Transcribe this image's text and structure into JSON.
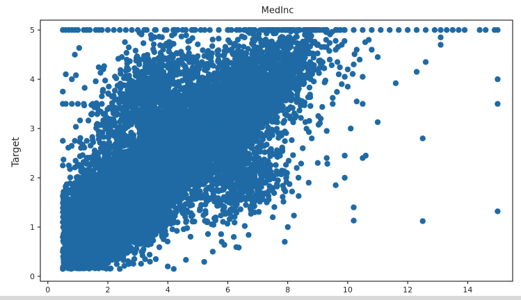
{
  "chart_data": {
    "type": "scatter",
    "title": "MedInc",
    "xlabel": "",
    "ylabel": "Target",
    "xlim": [
      -0.25,
      15.5
    ],
    "ylim": [
      -0.1,
      5.2
    ],
    "xticks": [
      0,
      2,
      4,
      6,
      8,
      10,
      12,
      14
    ],
    "yticks": [
      0,
      1,
      2,
      3,
      4,
      5
    ],
    "grid": false,
    "marker_color": "#1f6aa5",
    "cap_row": {
      "y": 5.0,
      "points": [
        0.5,
        0.6,
        0.7,
        0.8,
        0.9,
        1.0,
        1.2,
        1.3,
        1.4,
        1.6,
        1.7,
        1.8,
        2.0,
        2.2,
        2.4,
        2.6,
        2.8,
        3.0,
        3.3,
        3.6,
        3.9,
        4.2,
        4.5,
        4.8,
        5.1,
        5.4,
        5.7,
        6.0,
        6.3,
        6.6,
        6.9,
        7.2,
        7.5,
        7.8,
        8.1,
        8.4,
        8.7,
        9.0,
        9.3,
        9.6,
        9.9,
        10.2,
        10.5,
        10.8,
        11.1,
        11.4,
        11.7,
        12.0,
        12.3,
        12.6,
        12.9,
        13.1,
        13.3,
        13.5,
        13.7,
        13.9,
        14.4,
        14.6,
        14.9,
        15.0
      ]
    },
    "extra_points": [
      [
        0.5,
        3.5
      ],
      [
        0.6,
        3.5
      ],
      [
        0.8,
        3.5
      ],
      [
        1.0,
        3.5
      ],
      [
        1.2,
        3.5
      ],
      [
        1.5,
        3.5
      ],
      [
        1.8,
        3.5
      ],
      [
        0.5,
        2.75
      ],
      [
        0.9,
        2.75
      ],
      [
        1.3,
        2.75
      ],
      [
        0.5,
        2.25
      ],
      [
        0.7,
        2.25
      ],
      [
        0.5,
        1.63
      ],
      [
        0.6,
        1.63
      ],
      [
        0.5,
        0.15
      ],
      [
        0.9,
        0.35
      ],
      [
        1.0,
        0.6
      ],
      [
        1.5,
        0.25
      ],
      [
        1.9,
        0.2
      ],
      [
        2.4,
        0.15
      ],
      [
        2.7,
        0.25
      ],
      [
        3.6,
        0.35
      ],
      [
        4.0,
        0.2
      ],
      [
        4.2,
        0.15
      ],
      [
        0.5,
        1.1
      ],
      [
        0.5,
        0.8
      ],
      [
        0.5,
        0.5
      ],
      [
        0.6,
        0.9
      ],
      [
        0.6,
        1.2
      ],
      [
        0.5,
        3.75
      ],
      [
        0.8,
        4.0
      ],
      [
        0.9,
        4.5
      ],
      [
        0.6,
        4.1
      ],
      [
        7.9,
        0.7
      ],
      [
        5.5,
        0.5
      ],
      [
        5.8,
        0.7
      ],
      [
        6.2,
        0.8
      ],
      [
        7.5,
        1.2
      ],
      [
        8.0,
        1.0
      ],
      [
        6.9,
        1.3
      ],
      [
        7.3,
        1.5
      ],
      [
        8.3,
        2.2
      ],
      [
        8.7,
        1.9
      ],
      [
        9.0,
        2.3
      ],
      [
        9.3,
        2.4
      ],
      [
        8.5,
        2.6
      ],
      [
        9.1,
        3.2
      ],
      [
        9.3,
        2.95
      ],
      [
        8.8,
        2.8
      ],
      [
        9.6,
        1.85
      ],
      [
        9.9,
        2.0
      ],
      [
        9.9,
        2.45
      ],
      [
        10.2,
        1.4
      ],
      [
        10.2,
        1.13
      ],
      [
        10.5,
        2.4
      ],
      [
        10.6,
        2.45
      ],
      [
        10.1,
        3.0
      ],
      [
        10.3,
        3.55
      ],
      [
        10.5,
        3.5
      ],
      [
        11.0,
        3.13
      ],
      [
        9.9,
        4.05
      ],
      [
        9.5,
        3.5
      ],
      [
        9.8,
        3.9
      ],
      [
        9.7,
        4.1
      ],
      [
        10.0,
        3.85
      ],
      [
        10.2,
        4.3
      ],
      [
        10.4,
        4.4
      ],
      [
        10.7,
        4.8
      ],
      [
        10.5,
        4.05
      ],
      [
        11.0,
        4.45
      ],
      [
        10.0,
        4.2
      ],
      [
        9.4,
        4.4
      ],
      [
        9.6,
        4.6
      ],
      [
        9.8,
        4.7
      ],
      [
        10.3,
        4.6
      ],
      [
        10.8,
        4.6
      ],
      [
        11.6,
        3.92
      ],
      [
        12.3,
        4.15
      ],
      [
        12.6,
        4.35
      ],
      [
        13.1,
        4.7
      ],
      [
        13.1,
        4.85
      ],
      [
        12.5,
        2.8
      ],
      [
        12.5,
        1.12
      ],
      [
        15.0,
        3.5
      ],
      [
        15.0,
        4.0
      ],
      [
        15.0,
        1.32
      ]
    ],
    "clouds": [
      {
        "cx": 3.9,
        "cy": 2.3,
        "sx": 1.45,
        "sy": 0.62,
        "rho": 0.82,
        "count": 5200,
        "seed": 11
      },
      {
        "cx": 2.5,
        "cy": 1.05,
        "sx": 0.95,
        "sy": 0.42,
        "rho": 0.65,
        "count": 2600,
        "seed": 23
      },
      {
        "cx": 5.7,
        "cy": 3.4,
        "sx": 1.3,
        "sy": 0.75,
        "rho": 0.7,
        "count": 2400,
        "seed": 37
      },
      {
        "cx": 7.3,
        "cy": 3.9,
        "sx": 1.0,
        "sy": 0.6,
        "rho": 0.55,
        "count": 700,
        "seed": 41
      },
      {
        "cx": 1.8,
        "cy": 1.6,
        "sx": 0.6,
        "sy": 0.55,
        "rho": 0.3,
        "count": 900,
        "seed": 53
      },
      {
        "cx": 3.3,
        "cy": 3.6,
        "sx": 0.9,
        "sy": 0.6,
        "rho": 0.4,
        "count": 900,
        "seed": 61
      },
      {
        "cx": 6.6,
        "cy": 2.0,
        "sx": 0.8,
        "sy": 0.5,
        "rho": 0.5,
        "count": 500,
        "seed": 71
      },
      {
        "cx": 1.4,
        "cy": 0.7,
        "sx": 0.4,
        "sy": 0.3,
        "rho": 0.2,
        "count": 700,
        "seed": 83
      }
    ]
  }
}
